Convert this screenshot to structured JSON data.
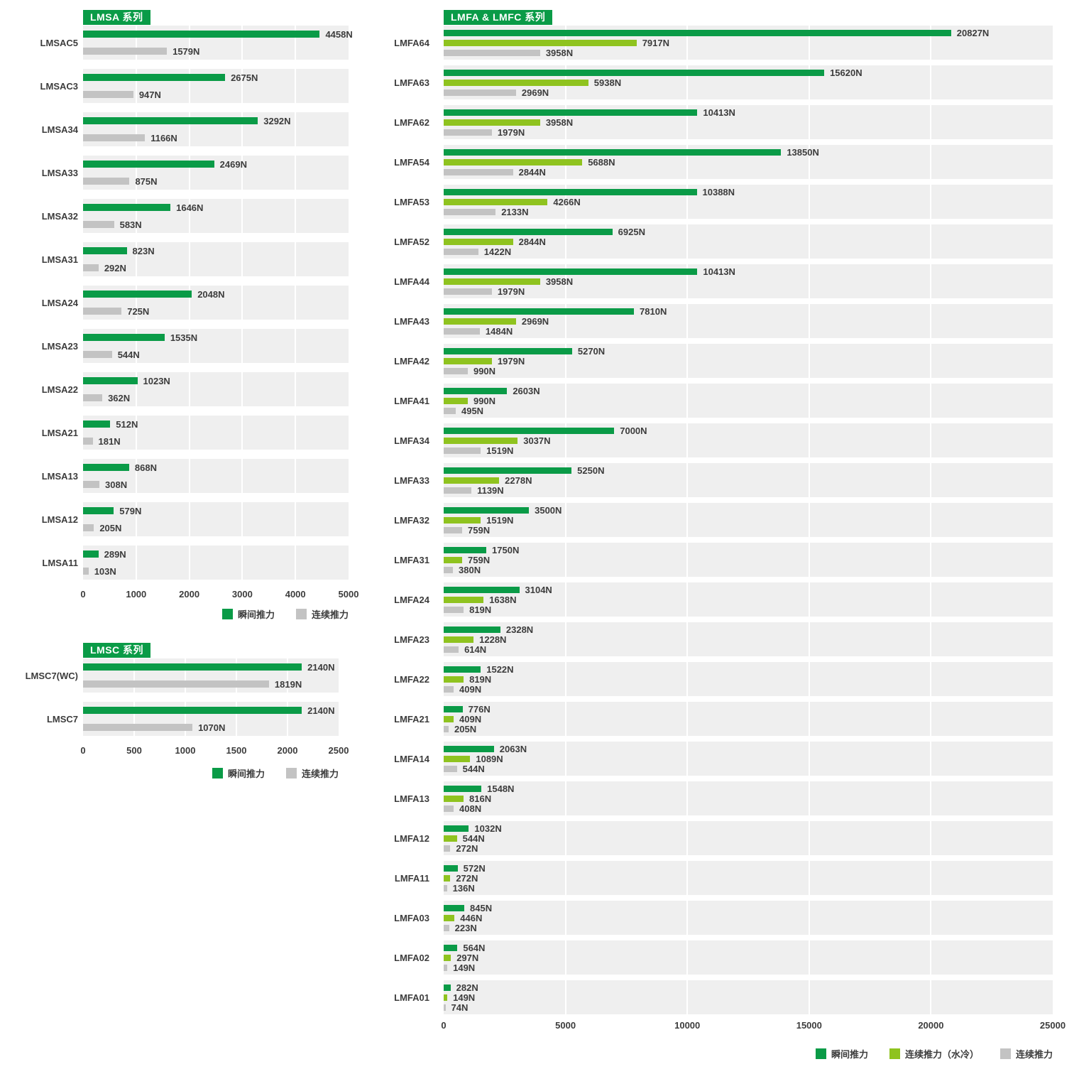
{
  "colors": {
    "instant": "#0a9b47",
    "continuous_wc": "#8fc31f",
    "continuous": "#c3c3c3",
    "band_bg": "#efefef",
    "badge_bg": "#0a9b47",
    "badge_text": "#ffffff",
    "text": "#3c3c3c"
  },
  "chart_data": [
    {
      "type": "bar",
      "orientation": "horizontal",
      "title": "LMSA 系列",
      "unit": "N",
      "xlim": [
        0,
        5000
      ],
      "ticks": [
        0,
        1000,
        2000,
        3000,
        4000,
        5000
      ],
      "grid": true,
      "legend_position": "bottom-right",
      "categories": [
        "LMSAC5",
        "LMSAC3",
        "LMSA34",
        "LMSA33",
        "LMSA32",
        "LMSA31",
        "LMSA24",
        "LMSA23",
        "LMSA22",
        "LMSA21",
        "LMSA13",
        "LMSA12",
        "LMSA11"
      ],
      "series": [
        {
          "name": "瞬间推力",
          "color_key": "instant",
          "values": [
            4458,
            2675,
            3292,
            2469,
            1646,
            823,
            2048,
            1535,
            1023,
            512,
            868,
            579,
            289
          ]
        },
        {
          "name": "连续推力",
          "color_key": "continuous",
          "values": [
            1579,
            947,
            1166,
            875,
            583,
            292,
            725,
            544,
            362,
            181,
            308,
            205,
            103
          ]
        }
      ]
    },
    {
      "type": "bar",
      "orientation": "horizontal",
      "title": "LMSC 系列",
      "unit": "N",
      "xlim": [
        0,
        2500
      ],
      "ticks": [
        0,
        500,
        1000,
        1500,
        2000,
        2500
      ],
      "grid": true,
      "legend_position": "bottom-right",
      "categories": [
        "LMSC7(WC)",
        "LMSC7"
      ],
      "series": [
        {
          "name": "瞬间推力",
          "color_key": "instant",
          "values": [
            2140,
            2140
          ]
        },
        {
          "name": "连续推力",
          "color_key": "continuous",
          "values": [
            1819,
            1070
          ]
        }
      ]
    },
    {
      "type": "bar",
      "orientation": "horizontal",
      "title": "LMFA & LMFC 系列",
      "unit": "N",
      "xlim": [
        0,
        25000
      ],
      "ticks": [
        0,
        5000,
        10000,
        15000,
        20000,
        25000
      ],
      "grid": true,
      "legend_position": "bottom-right",
      "categories": [
        "LMFA64",
        "LMFA63",
        "LMFA62",
        "LMFA54",
        "LMFA53",
        "LMFA52",
        "LMFA44",
        "LMFA43",
        "LMFA42",
        "LMFA41",
        "LMFA34",
        "LMFA33",
        "LMFA32",
        "LMFA31",
        "LMFA24",
        "LMFA23",
        "LMFA22",
        "LMFA21",
        "LMFA14",
        "LMFA13",
        "LMFA12",
        "LMFA11",
        "LMFA03",
        "LMFA02",
        "LMFA01"
      ],
      "series": [
        {
          "name": "瞬间推力",
          "color_key": "instant",
          "values": [
            20827,
            15620,
            10413,
            13850,
            10388,
            6925,
            10413,
            7810,
            5270,
            2603,
            7000,
            5250,
            3500,
            1750,
            3104,
            2328,
            1522,
            776,
            2063,
            1548,
            1032,
            572,
            845,
            564,
            282
          ]
        },
        {
          "name": "连续推力（水冷）",
          "color_key": "continuous_wc",
          "values": [
            7917,
            5938,
            3958,
            5688,
            4266,
            2844,
            3958,
            2969,
            1979,
            990,
            3037,
            2278,
            1519,
            759,
            1638,
            1228,
            819,
            409,
            1089,
            816,
            544,
            272,
            446,
            297,
            149
          ]
        },
        {
          "name": "连续推力",
          "color_key": "continuous",
          "values": [
            3958,
            2969,
            1979,
            2844,
            2133,
            1422,
            1979,
            1484,
            990,
            495,
            1519,
            1139,
            759,
            380,
            819,
            614,
            409,
            205,
            544,
            408,
            272,
            136,
            223,
            149,
            74
          ]
        }
      ]
    }
  ]
}
